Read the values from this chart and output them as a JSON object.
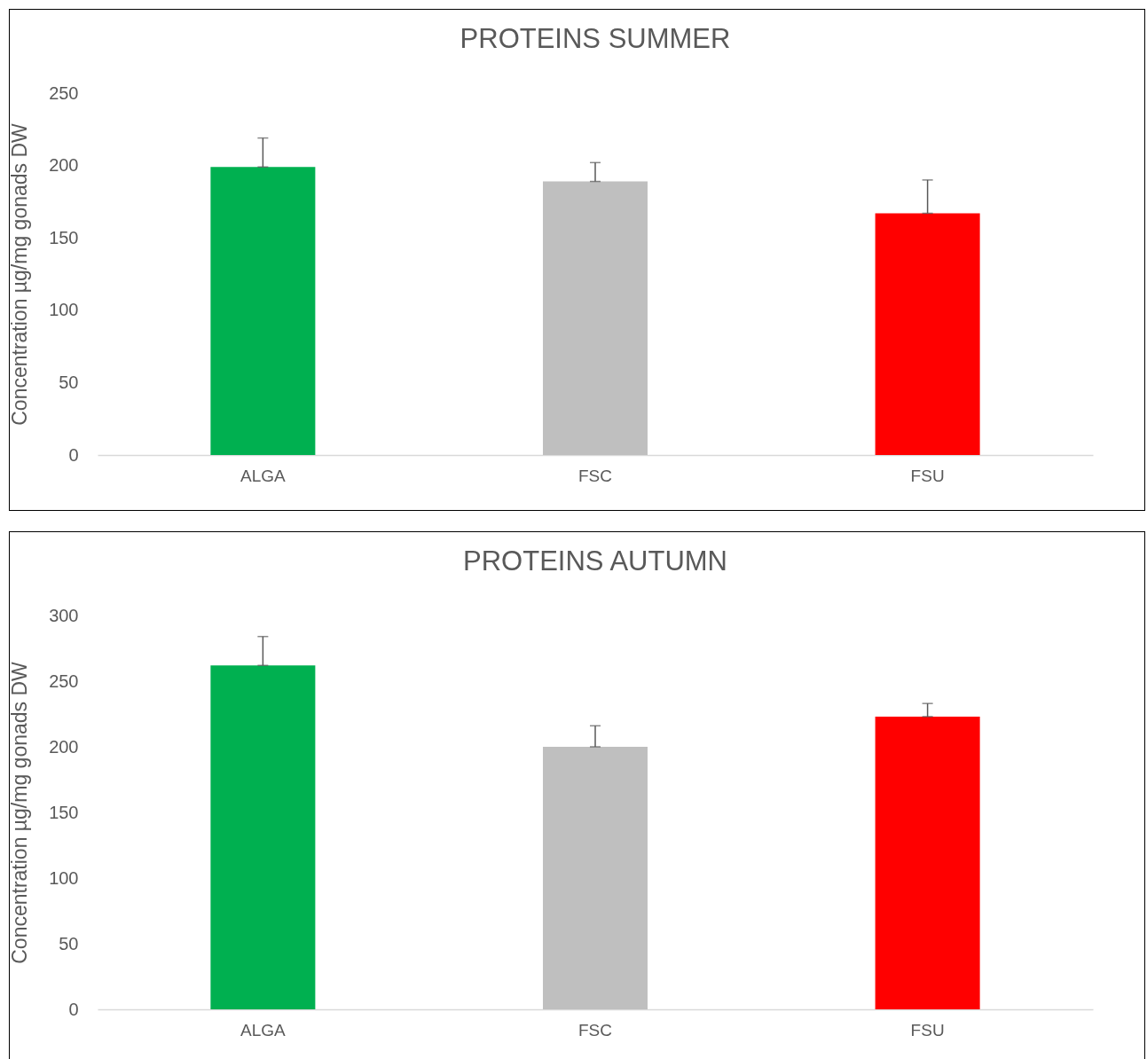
{
  "chart_data": [
    {
      "type": "bar",
      "title": "PROTEINS SUMMER",
      "ylabel": "Concentration  µg/mg gonads DW",
      "categories": [
        "ALGA",
        "FSC",
        "FSU"
      ],
      "values": [
        199,
        189,
        167
      ],
      "colors": [
        "#00b050",
        "#bfbfbf",
        "#ff0000"
      ],
      "errors": [
        [
          199,
          219
        ],
        [
          189,
          202
        ],
        [
          167,
          190
        ]
      ],
      "ylim": [
        0,
        250
      ],
      "yticks": [
        0,
        50,
        100,
        150,
        200,
        250
      ],
      "grid": false
    },
    {
      "type": "bar",
      "title": "PROTEINS AUTUMN",
      "ylabel": "Concentration  µg/mg gonads DW",
      "categories": [
        "ALGA",
        "FSC",
        "FSU"
      ],
      "values": [
        262,
        200,
        223
      ],
      "colors": [
        "#00b050",
        "#bfbfbf",
        "#ff0000"
      ],
      "errors": [
        [
          262,
          284
        ],
        [
          200,
          216
        ],
        [
          223,
          233
        ]
      ],
      "ylim": [
        0,
        300
      ],
      "yticks": [
        0,
        50,
        100,
        150,
        200,
        250,
        300
      ],
      "grid": false
    }
  ]
}
